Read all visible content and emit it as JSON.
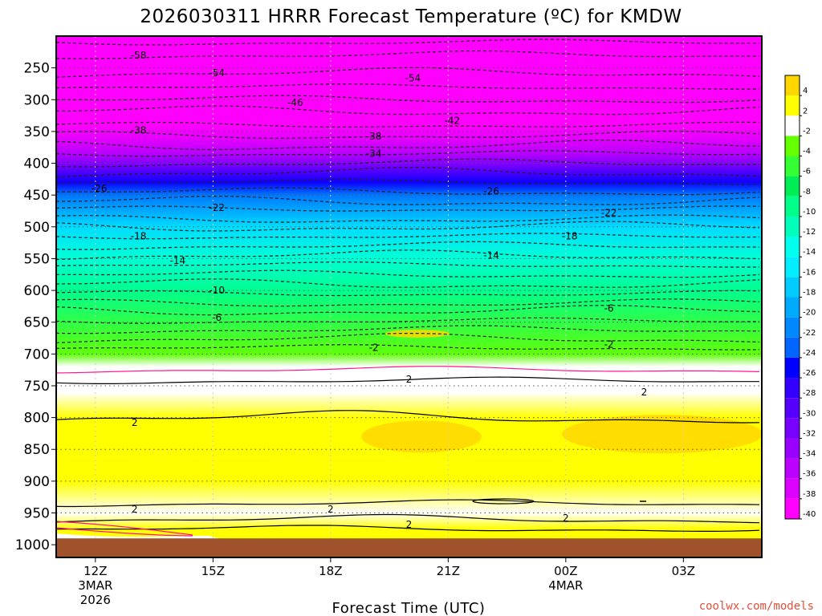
{
  "chart_data": {
    "type": "heatmap",
    "title": "2026030311 HRRR Forecast Temperature (ºC) for KMDW",
    "xlabel": "Forecast Time (UTC)",
    "ylabel": "",
    "credit": "coolwx.com/models",
    "y_levels": [
      1000,
      950,
      900,
      850,
      800,
      750,
      700,
      650,
      600,
      550,
      500,
      450,
      400,
      350,
      300,
      250
    ],
    "y_range": [
      1020,
      200
    ],
    "x_ticks": [
      {
        "label": "12Z",
        "sub": [
          "3MAR",
          "2026"
        ],
        "hour": 12
      },
      {
        "label": "15Z",
        "sub": [],
        "hour": 15
      },
      {
        "label": "18Z",
        "sub": [],
        "hour": 18
      },
      {
        "label": "21Z",
        "sub": [],
        "hour": 21
      },
      {
        "label": "00Z",
        "sub": [
          "4MAR"
        ],
        "hour": 24
      },
      {
        "label": "03Z",
        "sub": [],
        "hour": 27
      }
    ],
    "x_range": [
      11,
      29
    ],
    "ground_level_hpa": 990,
    "colorbar": {
      "labels": [
        "4",
        "2",
        "-2",
        "-4",
        "-6",
        "-8",
        "-10",
        "-12",
        "-14",
        "-16",
        "-18",
        "-20",
        "-22",
        "-24",
        "-26",
        "-28",
        "-30",
        "-32",
        "-34",
        "-36",
        "-38",
        "-40"
      ],
      "colors": [
        "#ffd700",
        "#ffff00",
        "#ffffff",
        "#66ff00",
        "#33ff33",
        "#00ee55",
        "#00ff88",
        "#00ffbb",
        "#00ffee",
        "#00eeff",
        "#00ccff",
        "#00aaff",
        "#0088ff",
        "#0066ff",
        "#0000ff",
        "#3300ff",
        "#5500ff",
        "#7700ff",
        "#9900ff",
        "#bb00ff",
        "#dd00ff",
        "#ff00ff"
      ]
    },
    "profile": [
      {
        "p": 1000,
        "t": 3
      },
      {
        "p": 975,
        "t": 3
      },
      {
        "p": 950,
        "t": 1
      },
      {
        "p": 900,
        "t": 3.5
      },
      {
        "p": 850,
        "t": 3.5
      },
      {
        "p": 800,
        "t": 3
      },
      {
        "p": 760,
        "t": 1.5
      },
      {
        "p": 720,
        "t": 0
      },
      {
        "p": 700,
        "t": -2.5
      },
      {
        "p": 650,
        "t": -6
      },
      {
        "p": 600,
        "t": -10
      },
      {
        "p": 550,
        "t": -14
      },
      {
        "p": 500,
        "t": -18
      },
      {
        "p": 450,
        "t": -22
      },
      {
        "p": 430,
        "t": -26
      },
      {
        "p": 400,
        "t": -30
      },
      {
        "p": 385,
        "t": -34
      },
      {
        "p": 360,
        "t": -38
      },
      {
        "p": 340,
        "t": -42
      },
      {
        "p": 300,
        "t": -46
      },
      {
        "p": 250,
        "t": -54
      },
      {
        "p": 225,
        "t": -58
      }
    ],
    "contour_labels": [
      {
        "text": "-58",
        "hour": 13.1,
        "p": 230
      },
      {
        "text": "-54",
        "hour": 15.1,
        "p": 258
      },
      {
        "text": "-54",
        "hour": 20.1,
        "p": 266
      },
      {
        "text": "-46",
        "hour": 17.1,
        "p": 305
      },
      {
        "text": "-42",
        "hour": 21.1,
        "p": 333
      },
      {
        "text": "-38",
        "hour": 13.1,
        "p": 348
      },
      {
        "text": "-38",
        "hour": 19.1,
        "p": 358
      },
      {
        "text": "-34",
        "hour": 19.1,
        "p": 385
      },
      {
        "text": "-26",
        "hour": 12.1,
        "p": 440
      },
      {
        "text": "-26",
        "hour": 22.1,
        "p": 444
      },
      {
        "text": "-22",
        "hour": 15.1,
        "p": 470
      },
      {
        "text": "-22",
        "hour": 25.1,
        "p": 478
      },
      {
        "text": "-18",
        "hour": 13.1,
        "p": 515
      },
      {
        "text": "-18",
        "hour": 24.1,
        "p": 515
      },
      {
        "text": "-14",
        "hour": 14.1,
        "p": 553
      },
      {
        "text": "-14",
        "hour": 22.1,
        "p": 545
      },
      {
        "text": "-10",
        "hour": 15.1,
        "p": 600
      },
      {
        "text": "-6",
        "hour": 15.1,
        "p": 643
      },
      {
        "text": "-6",
        "hour": 25.1,
        "p": 628
      },
      {
        "text": "-2",
        "hour": 19.1,
        "p": 690
      },
      {
        "text": "-2",
        "hour": 25.1,
        "p": 685
      },
      {
        "text": "2",
        "hour": 20.0,
        "p": 740
      },
      {
        "text": "2",
        "hour": 26.0,
        "p": 760
      },
      {
        "text": "2",
        "hour": 13.0,
        "p": 808
      },
      {
        "text": "2",
        "hour": 13.0,
        "p": 944
      },
      {
        "text": "2",
        "hour": 18.0,
        "p": 944
      },
      {
        "text": "2",
        "hour": 24.0,
        "p": 958
      },
      {
        "text": "2",
        "hour": 20.0,
        "p": 968
      }
    ]
  }
}
